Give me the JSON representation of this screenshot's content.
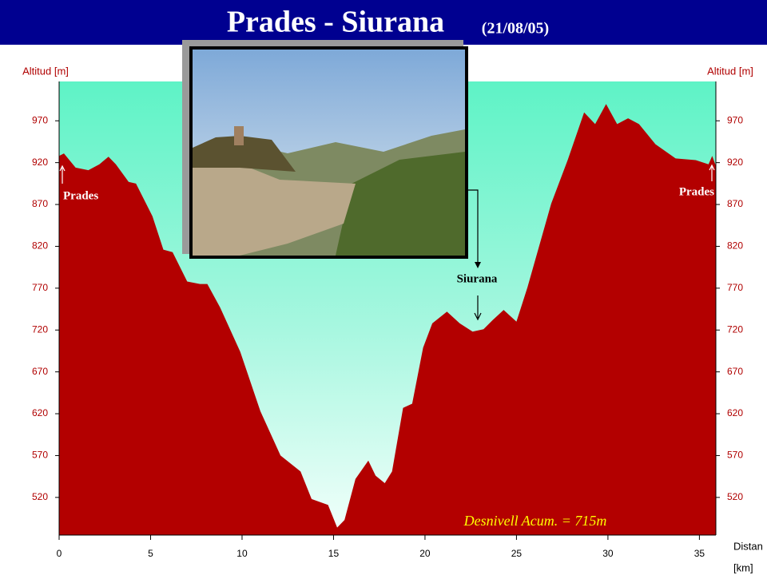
{
  "chart_data": {
    "type": "area",
    "title": "Prades - Siurana",
    "subtitle": "(21/08/05)",
    "y_label": "Altitud [m]",
    "y2_label": "Altitud [m]",
    "x_label": "Distan",
    "x_unit": "[km]",
    "annotations": [
      "Prades",
      "Prades",
      "Siurana",
      "Desnivell Acum. = 715m"
    ],
    "color": "#b30000",
    "xlim": [
      0,
      35.9
    ],
    "xticks": [
      0,
      5,
      10,
      15,
      20,
      25,
      30,
      35
    ],
    "ylim": [
      475,
      1017
    ],
    "yticks": [
      520,
      570,
      620,
      670,
      720,
      770,
      820,
      870,
      920,
      970
    ],
    "y2lim": [
      475,
      1017
    ],
    "y2ticks": [
      520,
      570,
      620,
      670,
      720,
      770,
      820,
      870,
      920,
      970
    ],
    "x": [
      0,
      0.26,
      0.9,
      1.6,
      2.2,
      2.7,
      3.1,
      3.8,
      4.2,
      5.1,
      5.7,
      6.2,
      7.0,
      7.7,
      8.1,
      8.8,
      9.9,
      11.0,
      12.1,
      13.2,
      13.8,
      14.7,
      15.2,
      15.6,
      16.2,
      16.9,
      17.3,
      17.8,
      18.2,
      18.8,
      19.3,
      19.9,
      20.4,
      21.2,
      21.9,
      22.6,
      23.2,
      23.7,
      24.3,
      25.0,
      25.6,
      26.9,
      27.8,
      28.7,
      29.3,
      29.9,
      30.5,
      31.1,
      31.7,
      32.6,
      33.7,
      34.8,
      35.5,
      35.7,
      35.9
    ],
    "values": [
      928,
      931,
      914,
      911,
      918,
      927,
      918,
      897,
      895,
      856,
      816,
      813,
      778,
      775,
      775,
      747,
      694,
      623,
      570,
      551,
      518,
      511,
      484,
      493,
      542,
      564,
      546,
      537,
      551,
      627,
      632,
      699,
      728,
      742,
      728,
      718,
      721,
      732,
      744,
      730,
      771,
      871,
      923,
      980,
      966,
      990,
      966,
      973,
      966,
      942,
      925,
      923,
      918,
      928,
      916
    ]
  }
}
